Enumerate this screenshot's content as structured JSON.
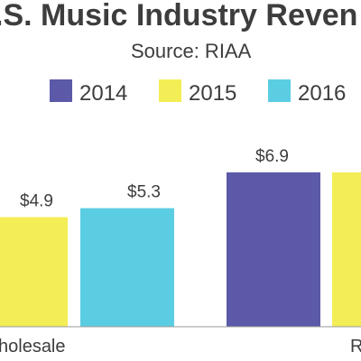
{
  "chart_data": {
    "type": "bar",
    "title": "U.S. Music Industry Revenue",
    "title_visible": ".S. Music Industry Reven",
    "subtitle": "Source: RIAA",
    "xlabel": "",
    "ylabel": "",
    "categories": [
      {
        "label": "Wholesale",
        "visible_label": "holesale"
      },
      {
        "label": "Retail",
        "visible_label": "R"
      }
    ],
    "series": [
      {
        "name": "2014",
        "color": "#5b59a8",
        "values": [
          null,
          6.9
        ],
        "value_labels": [
          "",
          "$6.9"
        ]
      },
      {
        "name": "2015",
        "color": "#f3ee55",
        "values": [
          4.9,
          6.9
        ],
        "value_labels": [
          "$4.9",
          ""
        ]
      },
      {
        "name": "2016",
        "color": "#5bcde3",
        "values": [
          5.3,
          null
        ],
        "value_labels": [
          "$5.3",
          ""
        ]
      }
    ],
    "ylim": [
      0,
      7.5
    ],
    "grid": false,
    "legend_placement": "top"
  }
}
